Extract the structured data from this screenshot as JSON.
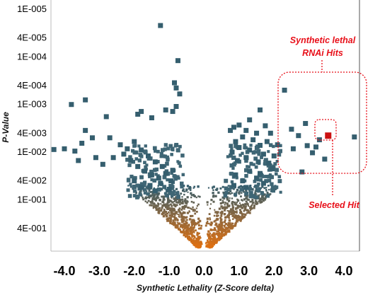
{
  "chart_data": {
    "type": "scatter",
    "xlabel": "Synthetic Lethality (Z-Score delta)",
    "ylabel": "P-Value",
    "x_ticks": [
      "-4.0",
      "-3.0",
      "-2.0",
      "-1.0",
      "0.0",
      "1.0",
      "2.0",
      "3.0",
      "4.0"
    ],
    "x_tick_values": [
      -4,
      -3,
      -2,
      -1,
      0,
      1,
      2,
      3,
      4
    ],
    "y_ticks": [
      "1E-005",
      "4E-005",
      "1E-004",
      "4E-004",
      "1E-003",
      "4E-003",
      "1E-002",
      "4E-002",
      "1E-001",
      "4E-001"
    ],
    "y_tick_values": [
      1e-05,
      4e-05,
      0.0001,
      0.0004,
      0.001,
      0.004,
      0.01,
      0.04,
      0.1,
      0.4
    ],
    "xlim": [
      -4.3,
      4.3
    ],
    "ylim_log": [
      8e-06,
      1.1
    ],
    "y_scale": "log",
    "y_inverted": true,
    "grid": false,
    "colors": {
      "significant": "#355e6e",
      "insignificant": "#e07010",
      "selected": "#cc1111",
      "callout": "#e8101a"
    },
    "annotations": [
      {
        "id": "hits",
        "text_lines": [
          "Synthetic lethal",
          "RNAi Hits"
        ]
      },
      {
        "id": "selected",
        "text": "Selected Hit"
      }
    ],
    "selected_point": {
      "x": 3.55,
      "y": 0.0045
    },
    "large_points": [
      {
        "x": -1.25,
        "y": 2.2e-05
      },
      {
        "x": -0.75,
        "y": 0.00012
      },
      {
        "x": -0.85,
        "y": 0.00035
      },
      {
        "x": -0.8,
        "y": 0.00045
      },
      {
        "x": -0.7,
        "y": 0.0006
      },
      {
        "x": -0.9,
        "y": 0.0014
      },
      {
        "x": -0.8,
        "y": 0.0011
      },
      {
        "x": -1.1,
        "y": 0.0013
      },
      {
        "x": -1.8,
        "y": 0.0014
      },
      {
        "x": -1.9,
        "y": 0.0016
      },
      {
        "x": -2.8,
        "y": 0.0018
      },
      {
        "x": -3.4,
        "y": 0.0008
      },
      {
        "x": -3.8,
        "y": 0.001
      },
      {
        "x": -1.5,
        "y": 0.0019
      },
      {
        "x": 2.3,
        "y": 0.0005
      },
      {
        "x": 1.6,
        "y": 0.0013
      },
      {
        "x": 1.3,
        "y": 0.0021
      },
      {
        "x": 2.9,
        "y": 0.0025
      },
      {
        "x": 1.0,
        "y": 0.0027
      },
      {
        "x": 0.85,
        "y": 0.003
      },
      {
        "x": 1.75,
        "y": 0.0028
      },
      {
        "x": 4.3,
        "y": 0.0048
      },
      {
        "x": 2.7,
        "y": 0.0045
      },
      {
        "x": 2.5,
        "y": 0.0033
      },
      {
        "x": 1.9,
        "y": 0.004
      },
      {
        "x": 3.3,
        "y": 0.0055
      },
      {
        "x": 3.2,
        "y": 0.0078
      },
      {
        "x": 2.95,
        "y": 0.0073
      },
      {
        "x": 2.55,
        "y": 0.0085
      },
      {
        "x": 3.1,
        "y": 0.0103
      },
      {
        "x": 3.45,
        "y": 0.014
      },
      {
        "x": 2.8,
        "y": 0.026
      },
      {
        "x": 0.75,
        "y": 0.0035
      },
      {
        "x": 1.2,
        "y": 0.0035
      },
      {
        "x": 1.5,
        "y": 0.004
      },
      {
        "x": 1.1,
        "y": 0.0048
      },
      {
        "x": 0.9,
        "y": 0.006
      },
      {
        "x": 1.4,
        "y": 0.0055
      },
      {
        "x": 1.8,
        "y": 0.006
      },
      {
        "x": 2.1,
        "y": 0.007
      },
      {
        "x": 1.6,
        "y": 0.0072
      },
      {
        "x": 1.0,
        "y": 0.008
      },
      {
        "x": 1.3,
        "y": 0.009
      },
      {
        "x": 0.8,
        "y": 0.01
      },
      {
        "x": 1.7,
        "y": 0.011
      },
      {
        "x": 2.0,
        "y": 0.012
      },
      {
        "x": 1.2,
        "y": 0.013
      },
      {
        "x": 0.95,
        "y": 0.015
      },
      {
        "x": 1.55,
        "y": 0.016
      },
      {
        "x": 1.85,
        "y": 0.017
      },
      {
        "x": -4.0,
        "y": 0.0085
      },
      {
        "x": -4.3,
        "y": 0.0088
      },
      {
        "x": -3.7,
        "y": 0.0095
      },
      {
        "x": -3.5,
        "y": 0.0065
      },
      {
        "x": -3.2,
        "y": 0.005
      },
      {
        "x": -3.4,
        "y": 0.0035
      },
      {
        "x": -2.7,
        "y": 0.005
      },
      {
        "x": -2.4,
        "y": 0.007
      },
      {
        "x": -2.2,
        "y": 0.0085
      },
      {
        "x": -2.0,
        "y": 0.006
      },
      {
        "x": -1.8,
        "y": 0.009
      },
      {
        "x": -3.6,
        "y": 0.015
      },
      {
        "x": -3.1,
        "y": 0.013
      },
      {
        "x": -2.9,
        "y": 0.018
      },
      {
        "x": -2.6,
        "y": 0.013
      },
      {
        "x": -2.3,
        "y": 0.011
      },
      {
        "x": -2.1,
        "y": 0.015
      },
      {
        "x": -1.9,
        "y": 0.02
      },
      {
        "x": -1.6,
        "y": 0.012
      },
      {
        "x": -1.4,
        "y": 0.016
      },
      {
        "x": -1.2,
        "y": 0.02
      },
      {
        "x": -1.7,
        "y": 0.025
      },
      {
        "x": -1.5,
        "y": 0.03
      },
      {
        "x": -1.3,
        "y": 0.035
      },
      {
        "x": -1.1,
        "y": 0.028
      },
      {
        "x": -0.9,
        "y": 0.024
      },
      {
        "x": -0.95,
        "y": 0.04
      },
      {
        "x": -1.25,
        "y": 0.045
      },
      {
        "x": -1.55,
        "y": 0.05
      },
      {
        "x": -2.0,
        "y": 0.04
      },
      {
        "x": -1.8,
        "y": 0.055
      },
      {
        "x": -1.0,
        "y": 0.06
      },
      {
        "x": -1.4,
        "y": 0.065
      },
      {
        "x": 0.9,
        "y": 0.03
      },
      {
        "x": 1.3,
        "y": 0.025
      },
      {
        "x": 1.1,
        "y": 0.04
      },
      {
        "x": 1.5,
        "y": 0.035
      },
      {
        "x": 0.85,
        "y": 0.05
      },
      {
        "x": 1.2,
        "y": 0.055
      },
      {
        "x": 1.7,
        "y": 0.045
      },
      {
        "x": 1.6,
        "y": 0.028
      },
      {
        "x": 1.95,
        "y": 0.022
      }
    ],
    "large_point_area_note": "dense clusters of significant points also lie at x between -2.2 and -0.6 and between 0.6 and 2.2, with p-value between 0.007 and 0.09",
    "small_point_distribution": "tapering V-shaped cloud centered on x = 0 with p-value from 0.05 to 1.0"
  }
}
